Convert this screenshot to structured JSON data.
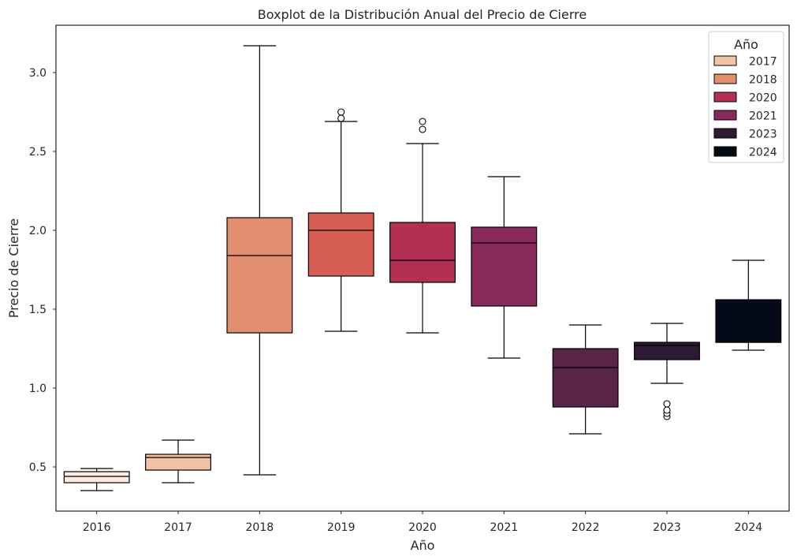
{
  "chart_data": {
    "type": "box",
    "title": "Boxplot de la Distribución Anual del Precio de Cierre",
    "xlabel": "Año",
    "ylabel": "Precio de Cierre",
    "ylim": [
      0.22,
      3.3
    ],
    "yticks": [
      "0.5",
      "1.0",
      "1.5",
      "2.0",
      "2.5",
      "3.0"
    ],
    "grid": false,
    "categories": [
      "2016",
      "2017",
      "2018",
      "2019",
      "2020",
      "2021",
      "2022",
      "2023",
      "2024"
    ],
    "boxes": [
      {
        "category": "2016",
        "whisker_low": 0.35,
        "q1": 0.4,
        "median": 0.44,
        "q3": 0.47,
        "whisker_high": 0.49,
        "outliers": [],
        "color": "#fcebe0"
      },
      {
        "category": "2017",
        "whisker_low": 0.4,
        "q1": 0.48,
        "median": 0.56,
        "q3": 0.58,
        "whisker_high": 0.67,
        "outliers": [],
        "color": "#f2c2a5"
      },
      {
        "category": "2018",
        "whisker_low": 0.45,
        "q1": 1.35,
        "median": 1.84,
        "q3": 2.08,
        "whisker_high": 3.17,
        "outliers": [],
        "color": "#e28e70"
      },
      {
        "category": "2019",
        "whisker_low": 1.36,
        "q1": 1.71,
        "median": 2.0,
        "q3": 2.11,
        "whisker_high": 2.69,
        "outliers": [
          2.71,
          2.75
        ],
        "color": "#d75e55"
      },
      {
        "category": "2020",
        "whisker_low": 1.35,
        "q1": 1.67,
        "median": 1.81,
        "q3": 2.05,
        "whisker_high": 2.55,
        "outliers": [
          2.64,
          2.69
        ],
        "color": "#b33055"
      },
      {
        "category": "2021",
        "whisker_low": 1.19,
        "q1": 1.52,
        "median": 1.92,
        "q3": 2.02,
        "whisker_high": 2.34,
        "outliers": [],
        "color": "#882b5c"
      },
      {
        "category": "2022",
        "whisker_low": 0.71,
        "q1": 0.88,
        "median": 1.13,
        "q3": 1.25,
        "whisker_high": 1.4,
        "outliers": [],
        "color": "#5a2448"
      },
      {
        "category": "2023",
        "whisker_low": 1.03,
        "q1": 1.18,
        "median": 1.27,
        "q3": 1.29,
        "whisker_high": 1.41,
        "outliers": [
          0.82,
          0.84,
          0.86,
          0.9
        ],
        "color": "#2e1a33"
      },
      {
        "category": "2024",
        "whisker_low": 1.24,
        "q1": 1.29,
        "median": 1.29,
        "q3": 1.56,
        "whisker_high": 1.81,
        "outliers": [],
        "color": "#050a1b"
      }
    ],
    "legend": {
      "title": "Año",
      "placement": "top-right",
      "entries": [
        {
          "label": "2017",
          "color": "#f2c2a5"
        },
        {
          "label": "2018",
          "color": "#e28e70"
        },
        {
          "label": "2020",
          "color": "#b33055"
        },
        {
          "label": "2021",
          "color": "#882b5c"
        },
        {
          "label": "2023",
          "color": "#2e1a33"
        },
        {
          "label": "2024",
          "color": "#050a1b"
        }
      ]
    }
  }
}
